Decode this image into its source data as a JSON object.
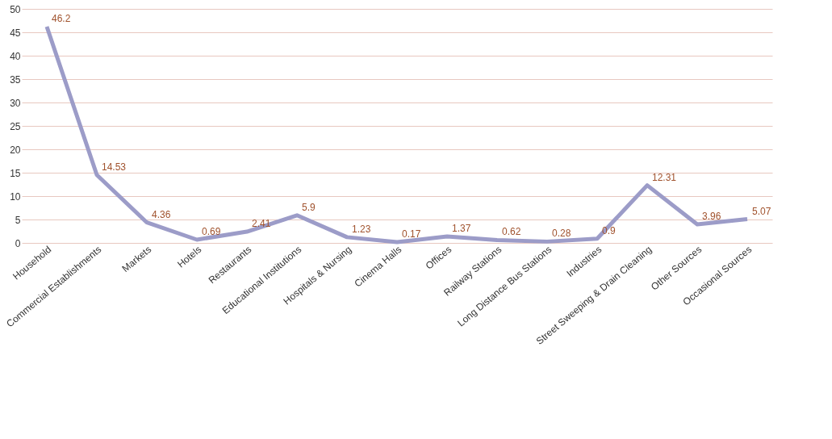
{
  "chart_data": {
    "type": "line",
    "categories": [
      "Household",
      "Commercial Establishments",
      "Markets",
      "Hotels",
      "Restaurants",
      "Educational Institutions",
      "Hospitals & Nursing",
      "Cinema Halls",
      "Offices",
      "Railway Stations",
      "Long Distance Bus Stations",
      "Industries",
      "Street Sweeping & Drain Cleaning",
      "Other Sources",
      "Occasional Sources"
    ],
    "series": [
      {
        "color": "#9c9cc8",
        "values": [
          46.2,
          14.53,
          4.36,
          0.69,
          2.41,
          5.9,
          1.23,
          0.17,
          1.37,
          0.62,
          0.28,
          0.9,
          12.31,
          3.96,
          5.07
        ]
      }
    ],
    "ylim": [
      0,
      50
    ],
    "yticks": [
      0,
      5,
      10,
      15,
      20,
      25,
      30,
      35,
      40,
      45,
      50
    ],
    "grid": "y",
    "marker": "none",
    "line_style": "solid",
    "data_labels": true
  }
}
